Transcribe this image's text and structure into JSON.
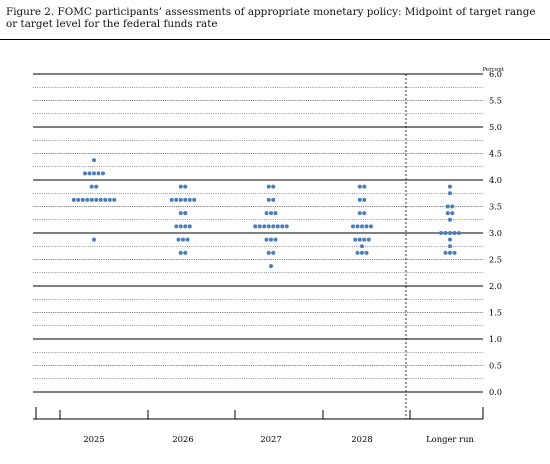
{
  "figure": {
    "title": "Figure 2. FOMC participants’ assessments of appropriate monetary policy: Midpoint of target range or target level for the federal funds rate"
  },
  "chart_data": {
    "type": "scatter",
    "title": "Figure 2. FOMC participants’ assessments of appropriate monetary policy: Midpoint of target range or target level for the federal funds rate",
    "ylabel": "Percent",
    "ylim": [
      0,
      6
    ],
    "yticks": [
      "6.0",
      "5.5",
      "5.0",
      "4.5",
      "4.0",
      "3.5",
      "3.0",
      "2.5",
      "2.0",
      "1.5",
      "1.0",
      "0.5",
      "0.0"
    ],
    "grid": true,
    "categories": [
      "2025",
      "2026",
      "2027",
      "2028",
      "Longer run"
    ],
    "dot_color": "#4a7ebb",
    "dots": [
      {
        "category": "2025",
        "counts": [
          {
            "rate": 4.375,
            "count": 1
          },
          {
            "rate": 4.125,
            "count": 5
          },
          {
            "rate": 3.875,
            "count": 2
          },
          {
            "rate": 3.625,
            "count": 10
          },
          {
            "rate": 2.875,
            "count": 1
          }
        ]
      },
      {
        "category": "2026",
        "counts": [
          {
            "rate": 3.875,
            "count": 2
          },
          {
            "rate": 3.625,
            "count": 6
          },
          {
            "rate": 3.375,
            "count": 2
          },
          {
            "rate": 3.125,
            "count": 4
          },
          {
            "rate": 2.875,
            "count": 3
          },
          {
            "rate": 2.625,
            "count": 2
          }
        ]
      },
      {
        "category": "2027",
        "counts": [
          {
            "rate": 3.875,
            "count": 2
          },
          {
            "rate": 3.625,
            "count": 2
          },
          {
            "rate": 3.375,
            "count": 3
          },
          {
            "rate": 3.125,
            "count": 8
          },
          {
            "rate": 2.875,
            "count": 3
          },
          {
            "rate": 2.625,
            "count": 2
          },
          {
            "rate": 2.375,
            "count": 1
          }
        ]
      },
      {
        "category": "2028",
        "counts": [
          {
            "rate": 3.875,
            "count": 2
          },
          {
            "rate": 3.625,
            "count": 2
          },
          {
            "rate": 3.375,
            "count": 2
          },
          {
            "rate": 3.125,
            "count": 5
          },
          {
            "rate": 2.875,
            "count": 4
          },
          {
            "rate": 2.75,
            "count": 1
          },
          {
            "rate": 2.625,
            "count": 3
          }
        ]
      },
      {
        "category": "Longer run",
        "counts": [
          {
            "rate": 3.875,
            "count": 1
          },
          {
            "rate": 3.75,
            "count": 1
          },
          {
            "rate": 3.5,
            "count": 2
          },
          {
            "rate": 3.375,
            "count": 2
          },
          {
            "rate": 3.25,
            "count": 1
          },
          {
            "rate": 3.0,
            "count": 5
          },
          {
            "rate": 2.875,
            "count": 1
          },
          {
            "rate": 2.75,
            "count": 1
          },
          {
            "rate": 2.625,
            "count": 3
          }
        ]
      }
    ]
  }
}
